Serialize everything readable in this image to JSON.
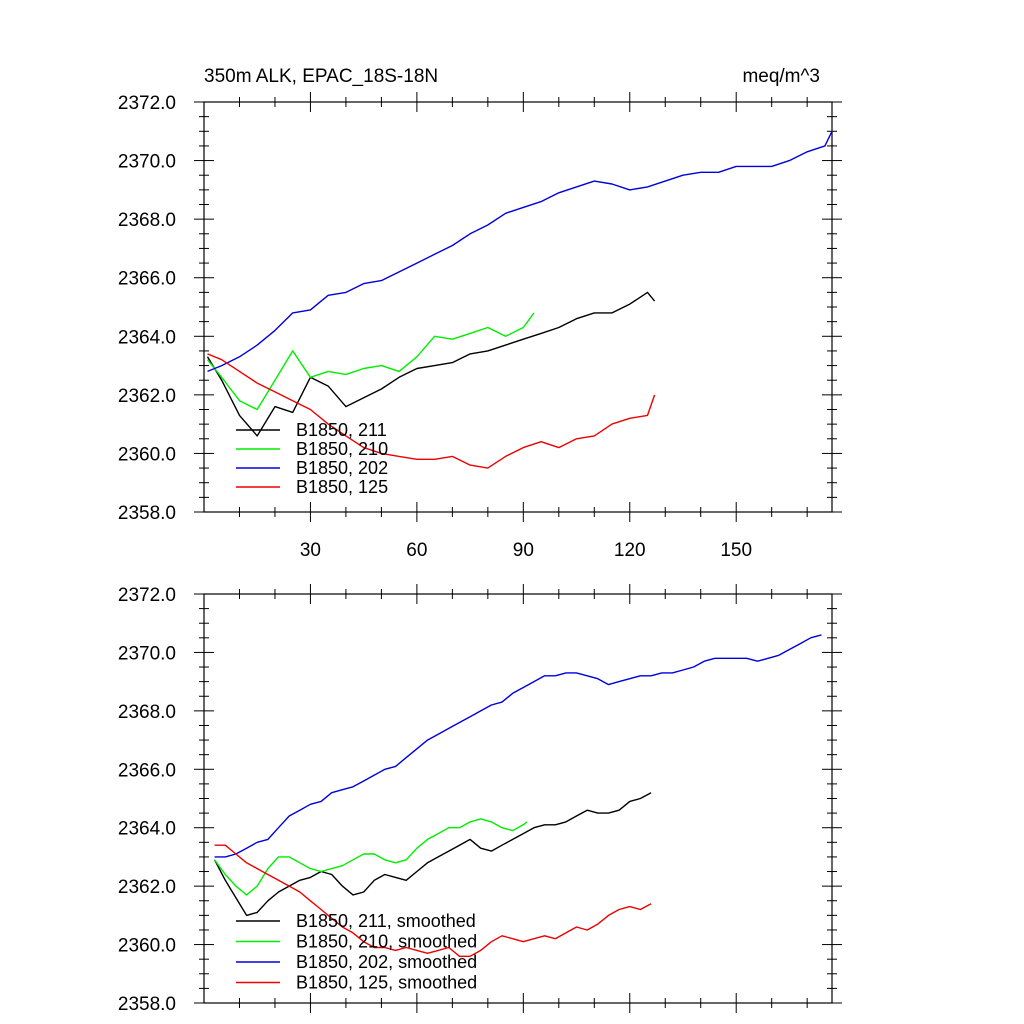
{
  "chart_data": [
    {
      "type": "line",
      "title": "350m ALK, EPAC_18S-18N",
      "title_right": "meq/m^3",
      "xlabel": "",
      "ylabel": "",
      "xlim": [
        0,
        177
      ],
      "ylim": [
        2358.0,
        2372.0
      ],
      "xticks": [
        30,
        60,
        90,
        120,
        150
      ],
      "xtick_labels": [
        "30",
        "60",
        "90",
        "120",
        "150"
      ],
      "yticks": [
        2358,
        2360,
        2362,
        2364,
        2366,
        2368,
        2370,
        2372
      ],
      "ytick_labels": [
        "2358.0",
        "2360.0",
        "2362.0",
        "2364.0",
        "2366.0",
        "2368.0",
        "2370.0",
        "2372.0"
      ],
      "grid": false,
      "legend": "lower-left",
      "series": [
        {
          "name": "B1850, 211",
          "color": "#000000",
          "x": [
            1,
            5,
            10,
            15,
            20,
            25,
            30,
            35,
            40,
            45,
            50,
            55,
            60,
            65,
            70,
            75,
            80,
            85,
            90,
            95,
            100,
            105,
            110,
            115,
            120,
            125,
            127
          ],
          "values": [
            2363.3,
            2362.5,
            2361.3,
            2360.6,
            2361.6,
            2361.4,
            2362.6,
            2362.3,
            2361.6,
            2361.9,
            2362.2,
            2362.6,
            2362.9,
            2363.0,
            2363.1,
            2363.4,
            2363.5,
            2363.7,
            2363.9,
            2364.1,
            2364.3,
            2364.6,
            2364.8,
            2364.8,
            2365.1,
            2365.5,
            2365.2
          ]
        },
        {
          "name": "B1850, 210",
          "color": "#00ee00",
          "x": [
            1,
            5,
            10,
            15,
            20,
            25,
            30,
            35,
            40,
            45,
            50,
            55,
            60,
            65,
            70,
            75,
            80,
            85,
            90,
            93
          ],
          "values": [
            2363.2,
            2362.6,
            2361.8,
            2361.5,
            2362.5,
            2363.5,
            2362.6,
            2362.8,
            2362.7,
            2362.9,
            2363.0,
            2362.8,
            2363.3,
            2364.0,
            2363.9,
            2364.1,
            2364.3,
            2364.0,
            2364.3,
            2364.8
          ]
        },
        {
          "name": "B1850, 202",
          "color": "#0000dd",
          "x": [
            1,
            5,
            10,
            15,
            20,
            25,
            30,
            35,
            40,
            45,
            50,
            55,
            60,
            65,
            70,
            75,
            80,
            85,
            90,
            95,
            100,
            105,
            110,
            115,
            120,
            125,
            130,
            135,
            140,
            145,
            150,
            155,
            160,
            165,
            170,
            175,
            177
          ],
          "values": [
            2362.8,
            2363.0,
            2363.3,
            2363.7,
            2364.2,
            2364.8,
            2364.9,
            2365.4,
            2365.5,
            2365.8,
            2365.9,
            2366.2,
            2366.5,
            2366.8,
            2367.1,
            2367.5,
            2367.8,
            2368.2,
            2368.4,
            2368.6,
            2368.9,
            2369.1,
            2369.3,
            2369.2,
            2369.0,
            2369.1,
            2369.3,
            2369.5,
            2369.6,
            2369.6,
            2369.8,
            2369.8,
            2369.8,
            2370.0,
            2370.3,
            2370.5,
            2371.0
          ]
        },
        {
          "name": "B1850, 125",
          "color": "#ee0000",
          "x": [
            1,
            5,
            10,
            15,
            20,
            25,
            30,
            35,
            40,
            45,
            50,
            55,
            60,
            65,
            70,
            75,
            80,
            85,
            90,
            95,
            100,
            105,
            110,
            115,
            120,
            125,
            127
          ],
          "values": [
            2363.4,
            2363.2,
            2362.8,
            2362.4,
            2362.1,
            2361.8,
            2361.5,
            2361.0,
            2360.6,
            2360.2,
            2360.0,
            2359.9,
            2359.8,
            2359.8,
            2359.9,
            2359.6,
            2359.5,
            2359.9,
            2360.2,
            2360.4,
            2360.2,
            2360.5,
            2360.6,
            2361.0,
            2361.2,
            2361.3,
            2362.0
          ]
        }
      ]
    },
    {
      "type": "line",
      "title": "",
      "xlabel": "",
      "ylabel": "",
      "xlim": [
        0,
        177
      ],
      "ylim": [
        2358.0,
        2372.0
      ],
      "xticks": [
        30,
        60,
        90,
        120,
        150
      ],
      "yticks": [
        2358,
        2360,
        2362,
        2364,
        2366,
        2368,
        2370,
        2372
      ],
      "ytick_labels": [
        "2358.0",
        "2360.0",
        "2362.0",
        "2364.0",
        "2366.0",
        "2368.0",
        "2370.0",
        "2372.0"
      ],
      "grid": false,
      "legend": "lower-left",
      "series": [
        {
          "name": "B1850, 211, smoothed",
          "color": "#000000",
          "x": [
            3,
            6,
            9,
            12,
            15,
            18,
            21,
            24,
            27,
            30,
            33,
            36,
            39,
            42,
            45,
            48,
            51,
            54,
            57,
            60,
            63,
            66,
            69,
            72,
            75,
            78,
            81,
            84,
            87,
            90,
            93,
            96,
            99,
            102,
            105,
            108,
            111,
            114,
            117,
            120,
            123,
            126
          ],
          "values": [
            2362.9,
            2362.2,
            2361.6,
            2361.0,
            2361.1,
            2361.5,
            2361.8,
            2362.0,
            2362.2,
            2362.3,
            2362.5,
            2362.4,
            2362.0,
            2361.7,
            2361.8,
            2362.2,
            2362.4,
            2362.3,
            2362.2,
            2362.5,
            2362.8,
            2363.0,
            2363.2,
            2363.4,
            2363.6,
            2363.3,
            2363.2,
            2363.4,
            2363.6,
            2363.8,
            2364.0,
            2364.1,
            2364.1,
            2364.2,
            2364.4,
            2364.6,
            2364.5,
            2364.5,
            2364.6,
            2364.9,
            2365.0,
            2365.2
          ]
        },
        {
          "name": "B1850, 210, smoothed",
          "color": "#00ee00",
          "x": [
            3,
            6,
            9,
            12,
            15,
            18,
            21,
            24,
            27,
            30,
            33,
            36,
            39,
            42,
            45,
            48,
            51,
            54,
            57,
            60,
            63,
            66,
            69,
            72,
            75,
            78,
            81,
            84,
            87,
            90,
            91
          ],
          "values": [
            2362.9,
            2362.4,
            2362.0,
            2361.7,
            2362.0,
            2362.6,
            2363.0,
            2363.0,
            2362.8,
            2362.6,
            2362.5,
            2362.6,
            2362.7,
            2362.9,
            2363.1,
            2363.1,
            2362.9,
            2362.8,
            2362.9,
            2363.3,
            2363.6,
            2363.8,
            2364.0,
            2364.0,
            2364.2,
            2364.3,
            2364.2,
            2364.0,
            2363.9,
            2364.1,
            2364.2
          ]
        },
        {
          "name": "B1850, 202, smoothed",
          "color": "#0000dd",
          "x": [
            3,
            6,
            9,
            12,
            15,
            18,
            21,
            24,
            27,
            30,
            33,
            36,
            39,
            42,
            45,
            48,
            51,
            54,
            57,
            60,
            63,
            66,
            69,
            72,
            75,
            78,
            81,
            84,
            87,
            90,
            93,
            96,
            99,
            102,
            105,
            108,
            111,
            114,
            117,
            120,
            123,
            126,
            129,
            132,
            135,
            138,
            141,
            144,
            147,
            150,
            153,
            156,
            159,
            162,
            165,
            168,
            171,
            174
          ],
          "values": [
            2363.0,
            2363.0,
            2363.1,
            2363.3,
            2363.5,
            2363.6,
            2364.0,
            2364.4,
            2364.6,
            2364.8,
            2364.9,
            2365.2,
            2365.3,
            2365.4,
            2365.6,
            2365.8,
            2366.0,
            2366.1,
            2366.4,
            2366.7,
            2367.0,
            2367.2,
            2367.4,
            2367.6,
            2367.8,
            2368.0,
            2368.2,
            2368.3,
            2368.6,
            2368.8,
            2369.0,
            2369.2,
            2369.2,
            2369.3,
            2369.3,
            2369.2,
            2369.1,
            2368.9,
            2369.0,
            2369.1,
            2369.2,
            2369.2,
            2369.3,
            2369.3,
            2369.4,
            2369.5,
            2369.7,
            2369.8,
            2369.8,
            2369.8,
            2369.8,
            2369.7,
            2369.8,
            2369.9,
            2370.1,
            2370.3,
            2370.5,
            2370.6
          ]
        },
        {
          "name": "B1850, 125, smoothed",
          "color": "#ee0000",
          "x": [
            3,
            6,
            9,
            12,
            15,
            18,
            21,
            24,
            27,
            30,
            33,
            36,
            39,
            42,
            45,
            48,
            51,
            54,
            57,
            60,
            63,
            66,
            69,
            72,
            75,
            78,
            81,
            84,
            87,
            90,
            93,
            96,
            99,
            102,
            105,
            108,
            111,
            114,
            117,
            120,
            123,
            126
          ],
          "values": [
            2363.4,
            2363.4,
            2363.1,
            2362.8,
            2362.6,
            2362.4,
            2362.2,
            2362.0,
            2361.8,
            2361.5,
            2361.2,
            2360.9,
            2360.6,
            2360.4,
            2360.1,
            2359.9,
            2359.9,
            2359.8,
            2359.9,
            2359.8,
            2359.7,
            2359.8,
            2359.9,
            2359.6,
            2359.6,
            2359.8,
            2360.1,
            2360.3,
            2360.2,
            2360.1,
            2360.2,
            2360.3,
            2360.2,
            2360.4,
            2360.6,
            2360.5,
            2360.7,
            2361.0,
            2361.2,
            2361.3,
            2361.2,
            2361.4
          ]
        }
      ]
    }
  ]
}
